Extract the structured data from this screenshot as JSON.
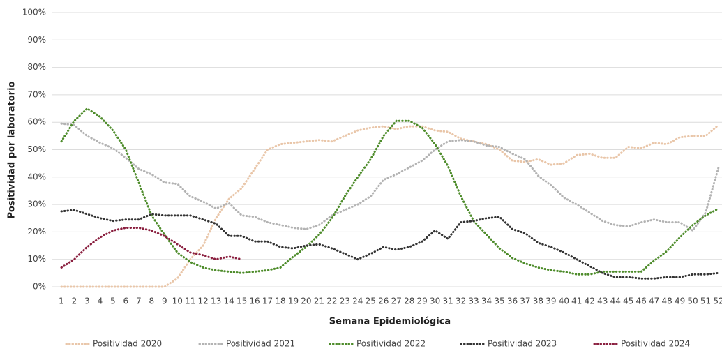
{
  "chart_data": {
    "type": "line",
    "x_label": "Semana Epidemiológica",
    "y_label": "Positividad por laboratorio",
    "categories": [
      "1",
      "2",
      "3",
      "4",
      "5",
      "6",
      "7",
      "8",
      "9",
      "10",
      "11",
      "12",
      "13",
      "14",
      "15",
      "16",
      "17",
      "18",
      "19",
      "20",
      "21",
      "22",
      "23",
      "24",
      "25",
      "26",
      "27",
      "28",
      "29",
      "30",
      "31",
      "32",
      "33",
      "34",
      "35",
      "36",
      "37",
      "38",
      "39",
      "40",
      "41",
      "42",
      "43",
      "44",
      "45",
      "46",
      "47",
      "48",
      "49",
      "50",
      "51",
      "52"
    ],
    "ylim": [
      0,
      100
    ],
    "yticks": [
      {
        "value": 0,
        "label": "0%"
      },
      {
        "value": 10,
        "label": "10%"
      },
      {
        "value": 20,
        "label": "20%"
      },
      {
        "value": 30,
        "label": "30%"
      },
      {
        "value": 40,
        "label": "40%"
      },
      {
        "value": 50,
        "label": "50%"
      },
      {
        "value": 60,
        "label": "60%"
      },
      {
        "value": 70,
        "label": "70%"
      },
      {
        "value": 80,
        "label": "80%"
      },
      {
        "value": 90,
        "label": "90%"
      },
      {
        "value": 100,
        "label": "100%"
      }
    ],
    "grid": true,
    "legend": "bottom",
    "series": [
      {
        "name": "Positividad 2020",
        "color": "#e9c6a9",
        "values": [
          0,
          0,
          0,
          0,
          0,
          0,
          0,
          0,
          0,
          3,
          10,
          15,
          25,
          32,
          36,
          43,
          50,
          52,
          52.5,
          53,
          53.5,
          53,
          55,
          57,
          58,
          58.5,
          57.5,
          58.5,
          58.5,
          57,
          56.5,
          54,
          53,
          52,
          50,
          46,
          45.5,
          46.5,
          44.5,
          45,
          48,
          48.5,
          47,
          47,
          51,
          50.5,
          52.5,
          52,
          54.5,
          55,
          55,
          59
        ]
      },
      {
        "name": "Positividad 2021",
        "color": "#b3b3b3",
        "values": [
          59.5,
          59,
          55,
          52.5,
          50.5,
          47,
          43,
          41,
          38,
          37.5,
          33,
          31,
          28.5,
          30.5,
          26,
          25.5,
          23.5,
          22.5,
          21.5,
          21,
          22.5,
          26,
          28,
          30,
          33,
          39,
          41,
          43.5,
          46,
          50,
          53,
          53.5,
          53,
          51.5,
          51,
          48.5,
          46.5,
          40.5,
          37,
          32.5,
          30,
          27,
          24,
          22.5,
          22,
          23.5,
          24.5,
          23.5,
          23.5,
          20.5,
          27,
          43.5
        ]
      },
      {
        "name": "Positividad 2022",
        "color": "#4e8c2b",
        "values": [
          53,
          60.5,
          65,
          62,
          57,
          50,
          38,
          26,
          19,
          12.5,
          9,
          7,
          6,
          5.5,
          5,
          5.5,
          6,
          7,
          11,
          14.5,
          19,
          25,
          33,
          40,
          46.5,
          55,
          60.5,
          60.5,
          58,
          52,
          44,
          33,
          24,
          19,
          14,
          10.5,
          8.5,
          7,
          6,
          5.5,
          4.5,
          4.5,
          5.5,
          5.5,
          5.5,
          5.5,
          9.5,
          13,
          18,
          22.5,
          26,
          28.5
        ]
      },
      {
        "name": "Positividad 2023",
        "color": "#333333",
        "values": [
          27.5,
          28,
          26.5,
          25,
          24,
          24.5,
          24.5,
          26.5,
          26,
          26,
          26,
          24.5,
          23,
          18.5,
          18.5,
          16.5,
          16.5,
          14.5,
          14,
          15,
          15.5,
          14,
          12,
          10,
          12,
          14.5,
          13.5,
          14.5,
          16.5,
          20.5,
          17.5,
          23.5,
          24,
          25,
          25.5,
          21,
          19.5,
          16,
          14.5,
          12.5,
          10,
          7.5,
          5,
          3.5,
          3.5,
          3,
          3,
          3.5,
          3.5,
          4.5,
          4.5,
          5
        ]
      },
      {
        "name": "Positividad 2024",
        "color": "#8a1f3f",
        "values": [
          7,
          10,
          14.5,
          18,
          20.5,
          21.5,
          21.5,
          20.5,
          18.5,
          15.5,
          12.5,
          11.5,
          10,
          11,
          10,
          null,
          null,
          null,
          null,
          null,
          null,
          null,
          null,
          null,
          null,
          null,
          null,
          null,
          null,
          null,
          null,
          null,
          null,
          null,
          null,
          null,
          null,
          null,
          null,
          null,
          null,
          null,
          null,
          null,
          null,
          null,
          null,
          null,
          null,
          null,
          null,
          null
        ]
      }
    ]
  }
}
